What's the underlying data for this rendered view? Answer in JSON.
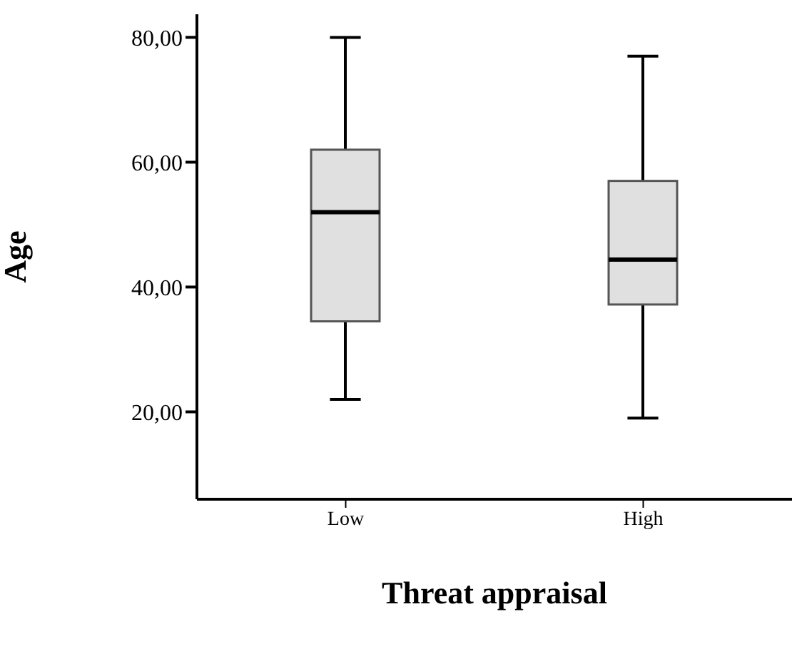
{
  "chart_data": {
    "type": "box",
    "xlabel": "Threat appraisal",
    "ylabel": "Age",
    "categories": [
      "Low",
      "High"
    ],
    "boxes": [
      {
        "low": 22,
        "q1": 34.5,
        "median": 52,
        "q3": 62,
        "high": 80
      },
      {
        "low": 19,
        "q1": 37.2,
        "median": 44.4,
        "q3": 57,
        "high": 77
      }
    ],
    "color": "#e0e0e0",
    "ylim": [
      6,
      83.7
    ],
    "yticks": [
      {
        "value": 20,
        "label": "20,00"
      },
      {
        "value": 40,
        "label": "40,00"
      },
      {
        "value": 60,
        "label": "60,00"
      },
      {
        "value": 80,
        "label": "80,00"
      }
    ],
    "grid": false
  }
}
